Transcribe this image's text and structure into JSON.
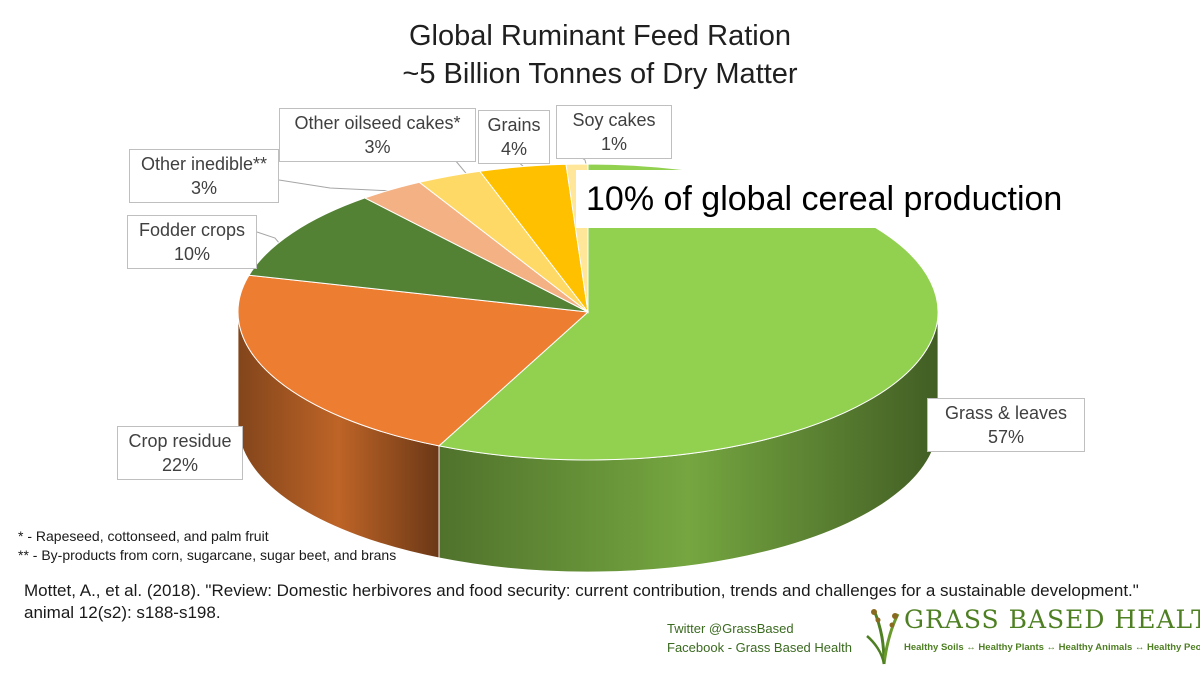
{
  "chart_data": {
    "type": "pie",
    "title": "Global Ruminant Feed Ration",
    "subtitle": "~5 Billion Tonnes of Dry Matter",
    "slices": [
      {
        "label": "Grass & leaves",
        "value": 57,
        "value_label": "57%",
        "color": "#92d050"
      },
      {
        "label": "Crop residue",
        "value": 22,
        "value_label": "22%",
        "color": "#ed7d31"
      },
      {
        "label": "Fodder crops",
        "value": 10,
        "value_label": "10%",
        "color": "#548235"
      },
      {
        "label": "Other inedible**",
        "value": 3,
        "value_label": "3%",
        "color": "#f4b183"
      },
      {
        "label": "Other oilseed cakes*",
        "value": 3,
        "value_label": "3%",
        "color": "#ffd966"
      },
      {
        "label": "Grains",
        "value": 4,
        "value_label": "4%",
        "color": "#ffc000"
      },
      {
        "label": "Soy cakes",
        "value": 1,
        "value_label": "1%",
        "color": "#ffe699"
      }
    ],
    "annotation": "10% of global cereal production",
    "legend": "none"
  },
  "footnotes": {
    "star": "* - Rapeseed, cottonseed, and palm fruit",
    "double_star": "** - By-products from corn, sugarcane, sugar beet, and brans"
  },
  "citation": {
    "line1": "Mottet, A., et al. (2018). \"Review: Domestic herbivores and food security: current contribution, trends and challenges for a sustainable development.\"",
    "line2": "animal 12(s2): s188-s198."
  },
  "social": {
    "twitter": "Twitter @GrassBased",
    "facebook": "Facebook - Grass Based Health"
  },
  "brand": {
    "name": "GRASS BASED HEALTH",
    "tagline": "Healthy Soils ↔ Healthy Plants ↔ Healthy Animals ↔ Healthy People"
  }
}
